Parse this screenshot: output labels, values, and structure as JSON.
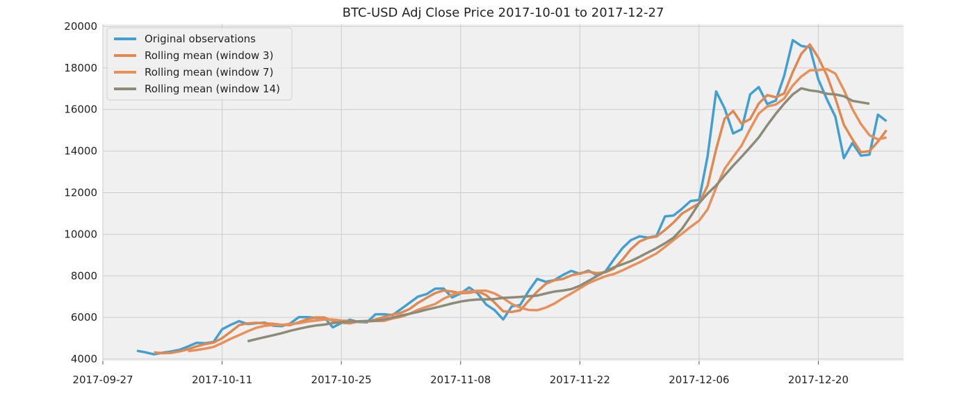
{
  "chart_data": {
    "type": "line",
    "title": "BTC-USD Adj Close Price 2017-10-01 to 2017-12-27",
    "xlabel": "",
    "ylabel": "",
    "x_start": "2017-10-01",
    "x_end": "2017-12-27",
    "xlim": [
      "2017-09-27",
      "2017-12-30"
    ],
    "ylim": [
      3900,
      20100
    ],
    "x_ticks": [
      "2017-09-27",
      "2017-10-11",
      "2017-10-25",
      "2017-11-08",
      "2017-11-22",
      "2017-12-06",
      "2017-12-20"
    ],
    "y_ticks": [
      4000,
      6000,
      8000,
      10000,
      12000,
      14000,
      16000,
      18000,
      20000
    ],
    "grid": true,
    "legend_position": "top-left",
    "background": "#f0f0f0",
    "series": [
      {
        "name": "Original observations",
        "color": "#41a0d0",
        "x_start": "2017-10-01",
        "values": [
          4395,
          4320,
          4225,
          4300,
          4360,
          4440,
          4600,
          4780,
          4760,
          4820,
          5430,
          5640,
          5820,
          5680,
          5720,
          5750,
          5600,
          5580,
          5710,
          6010,
          6010,
          5980,
          6000,
          5520,
          5730,
          5890,
          5780,
          5760,
          6150,
          6150,
          6110,
          6400,
          6700,
          7000,
          7120,
          7380,
          7390,
          6960,
          7150,
          7440,
          7160,
          6620,
          6350,
          5900,
          6530,
          6600,
          7280,
          7850,
          7710,
          7790,
          8040,
          8240,
          8100,
          8250,
          8040,
          8210,
          8790,
          9330,
          9720,
          9900,
          9840,
          9920,
          10860,
          10900,
          11230,
          11600,
          11650,
          13750,
          16870,
          16060,
          14850,
          15050,
          16730,
          17080,
          16270,
          16430,
          17630,
          19340,
          19060,
          18990,
          17450,
          16500,
          15650,
          13660,
          14390,
          13780,
          13830,
          15750,
          15440
        ]
      },
      {
        "name": "Rolling mean (window 3)",
        "color": "#e08850",
        "x_start": "2017-10-03",
        "values": [
          4313,
          4282,
          4295,
          4367,
          4467,
          4607,
          4713,
          4787,
          5003,
          5303,
          5630,
          5713,
          5740,
          5717,
          5690,
          5643,
          5630,
          5767,
          5910,
          6000,
          5997,
          5833,
          5750,
          5713,
          5800,
          5810,
          5897,
          6020,
          6137,
          6220,
          6403,
          6700,
          6940,
          7167,
          7297,
          7243,
          7167,
          7183,
          7250,
          7073,
          6710,
          6290,
          6260,
          6343,
          6803,
          7243,
          7613,
          7783,
          7847,
          8023,
          8127,
          8197,
          8130,
          8167,
          8347,
          8777,
          9280,
          9650,
          9820,
          9887,
          10207,
          10560,
          10997,
          11243,
          11493,
          12333,
          14090,
          15560,
          15927,
          15320,
          15543,
          16287,
          16693,
          16593,
          16777,
          17800,
          18677,
          19130,
          18500,
          17647,
          16533,
          15270,
          14567,
          13943,
          14000,
          14453,
          15007
        ]
      },
      {
        "name": "Rolling mean (window 7)",
        "color": "#e8905a",
        "x_start": "2017-10-07",
        "values": [
          4380,
          4432,
          4498,
          4580,
          4768,
          4969,
          5148,
          5333,
          5500,
          5594,
          5636,
          5640,
          5682,
          5720,
          5797,
          5852,
          5897,
          5900,
          5852,
          5829,
          5802,
          5804,
          5826,
          5829,
          5946,
          6025,
          6179,
          6365,
          6510,
          6640,
          6895,
          7088,
          7221,
          7250,
          7284,
          7287,
          7151,
          6925,
          6648,
          6475,
          6357,
          6346,
          6473,
          6658,
          6920,
          7149,
          7400,
          7640,
          7818,
          7977,
          8089,
          8261,
          8458,
          8648,
          8865,
          9076,
          9392,
          9715,
          10034,
          10353,
          10653,
          11200,
          12240,
          13145,
          13719,
          14273,
          15066,
          15804,
          16147,
          16240,
          16534,
          17158,
          17587,
          17884,
          17895,
          17946,
          17730,
          16944,
          16021,
          15303,
          14766,
          14564,
          14654
        ]
      },
      {
        "name": "Rolling mean (window 14)",
        "color": "#8b8b78",
        "x_start": "2017-10-14",
        "values": [
          4853,
          4955,
          5049,
          5143,
          5242,
          5357,
          5451,
          5539,
          5611,
          5655,
          5726,
          5770,
          5806,
          5815,
          5830,
          5838,
          5899,
          5990,
          6088,
          6174,
          6266,
          6374,
          6465,
          6566,
          6674,
          6762,
          6825,
          6860,
          6869,
          6883,
          6940,
          6960,
          6985,
          7020,
          7050,
          7150,
          7245,
          7290,
          7360,
          7525,
          7755,
          7985,
          8205,
          8410,
          8555,
          8710,
          8915,
          9125,
          9330,
          9570,
          9835,
          10265,
          10855,
          11495,
          11955,
          12350,
          12830,
          13295,
          13730,
          14185,
          14655,
          15245,
          15795,
          16285,
          16730,
          17020,
          16920,
          16870,
          16760,
          16725,
          16640,
          16420,
          16350,
          16280
        ]
      }
    ]
  }
}
